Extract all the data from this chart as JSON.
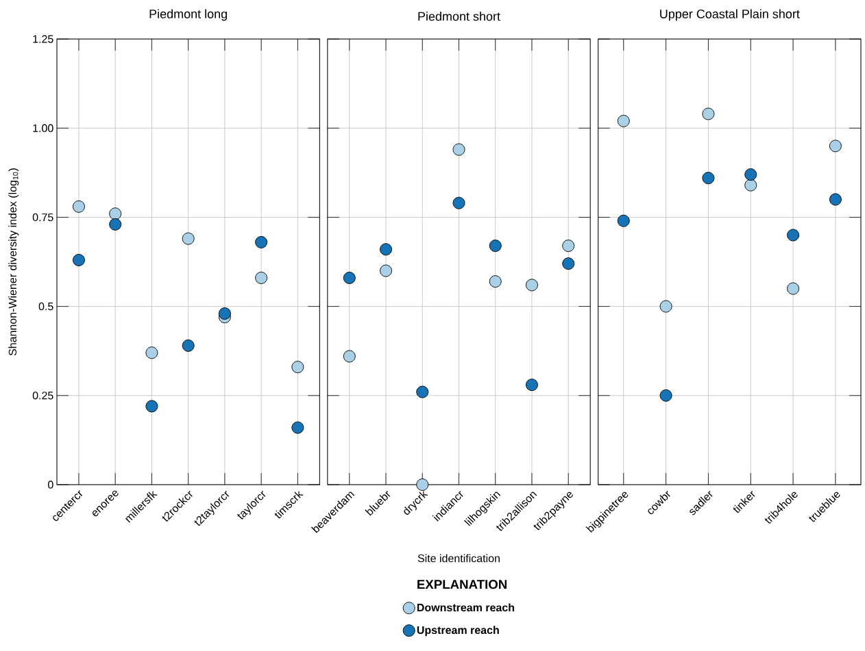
{
  "chart_data": [
    {
      "type": "scatter",
      "title": "Piedmont long",
      "ylabel": "Shannon-Wiener diversity index (log$_{10}$)",
      "categories": [
        "centercr",
        "enoree",
        "millersfk",
        "t2rockcr",
        "t2taylorcr",
        "taylorcr",
        "timscrk"
      ],
      "series": [
        {
          "color": "#a9d0e6",
          "values": [
            0.78,
            0.76,
            0.37,
            0.69,
            0.47,
            0.58,
            0.33
          ]
        },
        {
          "color": "#1673b5",
          "values": [
            0.63,
            0.73,
            0.22,
            0.39,
            0.48,
            0.68,
            0.16
          ]
        }
      ],
      "ylim": [
        0,
        1.25
      ],
      "yticks": [
        0,
        0.25,
        0.5,
        0.75,
        {
          "value": 1,
          "label": "1.00"
        },
        1.25
      ],
      "grid": true,
      "marker": "circle"
    },
    {
      "type": "scatter",
      "title": "Piedmont short",
      "xlabel": "Site identification",
      "legend_title": "EXPLANATION",
      "categories": [
        "beaverdam",
        "bluebr",
        "drycrk",
        "indiancr",
        "lilhogskin",
        "trib2allison",
        "trib2payne"
      ],
      "series": [
        {
          "name": "Downstream reach",
          "color": "#a9d0e6",
          "values": [
            0.36,
            0.6,
            0,
            0.94,
            0.57,
            0.56,
            0.67
          ]
        },
        {
          "name": "Upstream reach",
          "color": "#1673b5",
          "values": [
            0.58,
            0.66,
            0.26,
            0.79,
            0.67,
            0.28,
            0.62
          ]
        }
      ],
      "ylim": [
        0,
        1.25
      ],
      "yticks": [
        0,
        0.25,
        0.5,
        0.75,
        1,
        1.25
      ],
      "tick_labels": "x",
      "grid": true,
      "marker": "circle",
      "legend": "bottom"
    },
    {
      "type": "scatter",
      "title": "Upper Coastal Plain short",
      "categories": [
        "bigpinetree",
        "cowbr",
        "sadler",
        "tinker",
        "trib4hole",
        "trueblue"
      ],
      "series": [
        {
          "color": "#a9d0e6",
          "values": [
            1.02,
            0.5,
            1.04,
            0.84,
            0.55,
            0.95
          ]
        },
        {
          "color": "#1673b5",
          "values": [
            0.74,
            0.25,
            0.86,
            0.87,
            0.7,
            0.8
          ]
        }
      ],
      "ylim": [
        0,
        1.25
      ],
      "yticks": [
        0,
        0.25,
        0.5,
        0.75,
        1,
        1.25
      ],
      "tick_labels": "x",
      "grid": true,
      "marker": "circle"
    }
  ]
}
